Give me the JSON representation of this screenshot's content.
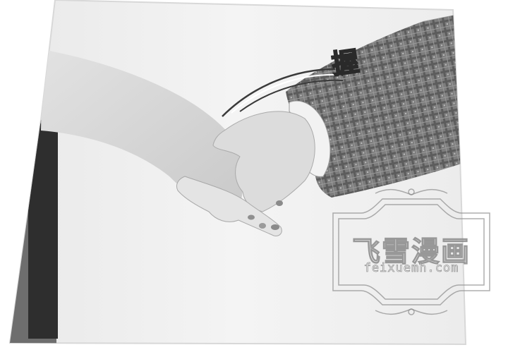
{
  "comic_panel": {
    "sound_effect": "握"
  },
  "watermark": {
    "title": "飞雪漫画",
    "url": "feixuemh.com"
  }
}
